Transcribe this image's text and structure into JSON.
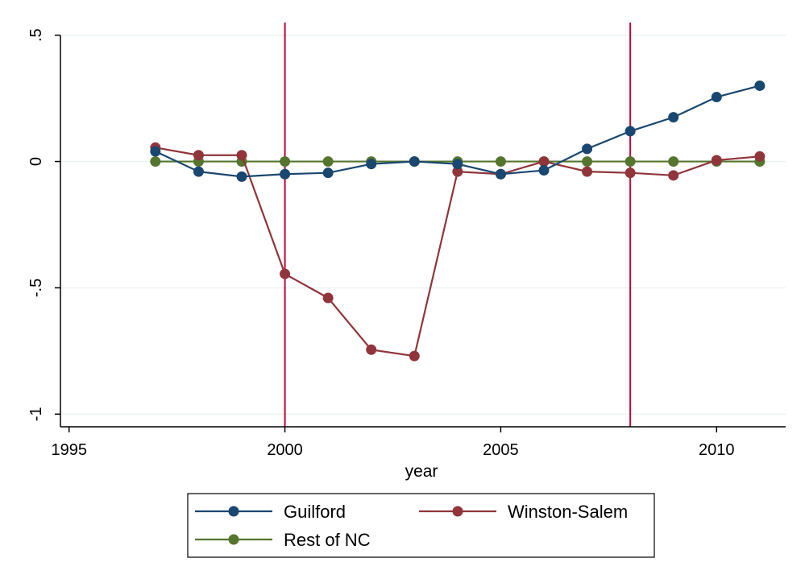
{
  "chart_data": {
    "type": "line",
    "xlabel": "year",
    "ylabel": "",
    "xlim": [
      1994.8,
      2011.6
    ],
    "ylim": [
      -1.05,
      0.55
    ],
    "xticks": [
      1995,
      2000,
      2005,
      2010
    ],
    "xtick_labels": [
      "1995",
      "2000",
      "2005",
      "2010"
    ],
    "yticks": [
      0.5,
      0,
      -0.5,
      -1
    ],
    "ytick_labels": [
      ".5",
      "0",
      "-.5",
      "-1"
    ],
    "grid": "horizontal",
    "reference_lines_x": [
      2000,
      2008
    ],
    "x": [
      1997,
      1998,
      1999,
      2000,
      2001,
      2002,
      2003,
      2004,
      2005,
      2006,
      2007,
      2008,
      2009,
      2010,
      2011
    ],
    "series": [
      {
        "name": "Guilford",
        "color": "#1a476f",
        "values": [
          0.04,
          -0.04,
          -0.06,
          -0.05,
          -0.045,
          -0.01,
          0.0,
          -0.01,
          -0.05,
          -0.035,
          0.05,
          0.12,
          0.175,
          0.255,
          0.3
        ]
      },
      {
        "name": "Winston-Salem",
        "color": "#90353b",
        "values": [
          0.055,
          0.025,
          0.025,
          -0.445,
          -0.54,
          -0.745,
          -0.77,
          -0.04,
          -0.05,
          0.0,
          -0.04,
          -0.045,
          -0.055,
          0.005,
          0.02
        ]
      },
      {
        "name": "Rest of NC",
        "color": "#55752f",
        "values": [
          0,
          0,
          0,
          0,
          0,
          0,
          0,
          0,
          0,
          0,
          0,
          0,
          0,
          0,
          0
        ]
      }
    ],
    "legend": {
      "position": "bottom",
      "columns": 2
    },
    "colors": {
      "reference_line": "#c10534",
      "grid": "#eaf2f3",
      "axis": "#000000"
    }
  }
}
